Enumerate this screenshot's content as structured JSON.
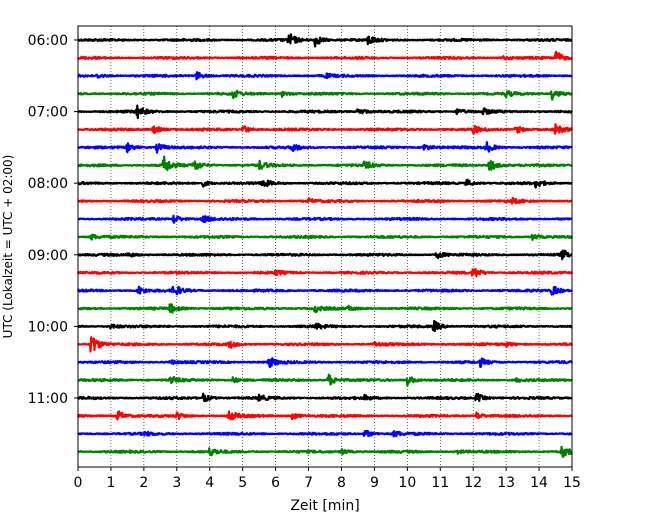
{
  "chart_data": {
    "type": "line",
    "title": "",
    "xlabel": "Zeit  [min]",
    "ylabel": "UTC (Lokalzeit = UTC + 02:00)",
    "xlim": [
      0,
      15
    ],
    "x_ticks": [
      "0",
      "1",
      "2",
      "3",
      "4",
      "5",
      "6",
      "7",
      "8",
      "9",
      "10",
      "11",
      "12",
      "13",
      "14",
      "15"
    ],
    "y_ticks": [
      "06:00",
      "07:00",
      "08:00",
      "09:00",
      "10:00",
      "11:00"
    ],
    "grid": "vertical dotted",
    "colors": [
      "#000000",
      "#ff0000",
      "#0000ff",
      "#008000"
    ],
    "line_start_times": [
      "06:00",
      "06:15",
      "06:30",
      "06:45",
      "07:00",
      "07:15",
      "07:30",
      "07:45",
      "08:00",
      "08:15",
      "08:30",
      "08:45",
      "09:00",
      "09:15",
      "09:30",
      "09:45",
      "10:00",
      "10:15",
      "10:30",
      "10:45",
      "11:00",
      "11:15",
      "11:30",
      "11:45"
    ],
    "events": [
      [
        [
          6.4,
          1.0
        ],
        [
          7.2,
          0.9
        ],
        [
          8.8,
          0.7
        ]
      ],
      [
        [
          14.5,
          1.0
        ],
        [
          12.9,
          0.3
        ]
      ],
      [
        [
          3.6,
          0.6
        ],
        [
          0.6,
          0.3
        ],
        [
          7.5,
          0.3
        ]
      ],
      [
        [
          4.7,
          0.6
        ],
        [
          14.4,
          0.8
        ],
        [
          13.0,
          0.4
        ],
        [
          6.2,
          0.4
        ]
      ],
      [
        [
          1.8,
          0.9
        ],
        [
          8.5,
          0.6
        ],
        [
          11.5,
          0.4
        ],
        [
          12.3,
          0.4
        ]
      ],
      [
        [
          2.3,
          0.6
        ],
        [
          5.0,
          0.6
        ],
        [
          12.0,
          0.5
        ],
        [
          13.3,
          0.6
        ],
        [
          14.5,
          0.7
        ]
      ],
      [
        [
          1.5,
          0.6
        ],
        [
          2.4,
          0.7
        ],
        [
          6.5,
          0.6
        ],
        [
          10.5,
          0.5
        ],
        [
          12.4,
          0.8
        ]
      ],
      [
        [
          2.6,
          1.3
        ],
        [
          3.5,
          0.9
        ],
        [
          5.5,
          0.6
        ],
        [
          8.7,
          0.6
        ],
        [
          12.5,
          0.9
        ]
      ],
      [
        [
          5.6,
          0.6
        ],
        [
          3.8,
          0.4
        ],
        [
          11.8,
          0.5
        ],
        [
          13.9,
          0.6
        ]
      ],
      [
        [
          13.2,
          0.3
        ],
        [
          7.0,
          0.3
        ]
      ],
      [
        [
          2.9,
          0.7
        ],
        [
          3.8,
          0.5
        ]
      ],
      [
        [
          0.4,
          0.4
        ],
        [
          13.8,
          0.4
        ]
      ],
      [
        [
          10.9,
          0.5
        ],
        [
          14.7,
          0.7
        ],
        [
          1.5,
          0.3
        ]
      ],
      [
        [
          12.0,
          0.9
        ],
        [
          6.0,
          0.3
        ]
      ],
      [
        [
          1.8,
          0.7
        ],
        [
          2.9,
          0.9
        ],
        [
          14.4,
          0.8
        ]
      ],
      [
        [
          2.8,
          0.7
        ],
        [
          7.2,
          0.5
        ],
        [
          8.2,
          0.3
        ]
      ],
      [
        [
          10.8,
          0.8
        ],
        [
          7.2,
          0.4
        ],
        [
          1.0,
          0.3
        ]
      ],
      [
        [
          0.4,
          1.6
        ],
        [
          4.6,
          0.5
        ],
        [
          9.0,
          0.3
        ],
        [
          13.0,
          0.3
        ]
      ],
      [
        [
          5.8,
          0.8
        ],
        [
          12.2,
          0.6
        ],
        [
          2.8,
          0.3
        ]
      ],
      [
        [
          2.8,
          0.6
        ],
        [
          7.6,
          0.9
        ],
        [
          10.0,
          0.7
        ],
        [
          4.7,
          0.4
        ],
        [
          13.3,
          0.3
        ]
      ],
      [
        [
          3.8,
          0.6
        ],
        [
          12.1,
          0.7
        ],
        [
          5.5,
          0.4
        ],
        [
          8.7,
          0.3
        ]
      ],
      [
        [
          1.2,
          0.8
        ],
        [
          4.6,
          0.8
        ],
        [
          3.0,
          0.5
        ],
        [
          6.5,
          0.5
        ],
        [
          12.1,
          0.5
        ]
      ],
      [
        [
          8.7,
          0.6
        ],
        [
          9.6,
          0.4
        ],
        [
          2.0,
          0.3
        ]
      ],
      [
        [
          14.7,
          0.9
        ],
        [
          4.0,
          0.6
        ],
        [
          8.0,
          0.4
        ],
        [
          11.5,
          0.3
        ]
      ]
    ]
  }
}
